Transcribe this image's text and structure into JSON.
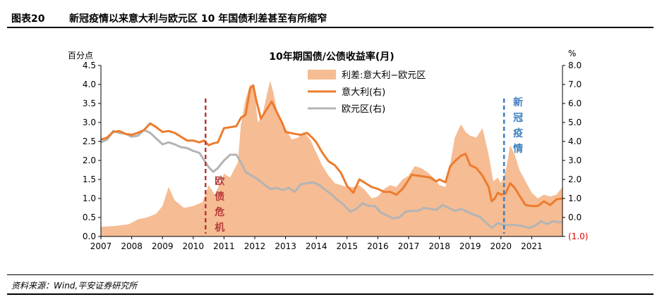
{
  "figure": {
    "number": "图表20",
    "title": "新冠疫情以来意大利与欧元区 10 年国债利差甚至有所缩窄"
  },
  "source": "资料来源：Wind,平安证券研究所",
  "colors": {
    "spread_fill": "#f6bc93",
    "italy_line": "#ec7c2e",
    "euro_line": "#b4b4b4",
    "crisis_marker": "#b53a3a",
    "covid_marker": "#3f7fbf",
    "negative_label": "#e00000"
  },
  "chart_data": {
    "type": "area+line",
    "title": "10年期国债/公债收益率(月)",
    "left_unit": "百分点",
    "right_unit": "%",
    "left_axis": {
      "min": 0,
      "max": 4.5,
      "step": 0.5,
      "tick_labels": [
        "0.0",
        "0.5",
        "1.0",
        "1.5",
        "2.0",
        "2.5",
        "3.0",
        "3.5",
        "4.0",
        "4.5"
      ]
    },
    "right_axis": {
      "min": -1,
      "max": 8,
      "step": 1,
      "tick_labels": [
        "(1.0)",
        "0.0",
        "1.0",
        "2.0",
        "3.0",
        "4.0",
        "5.0",
        "6.0",
        "7.0",
        "8.0"
      ]
    },
    "x_axis": {
      "min": 2007.0,
      "max": 2022.0,
      "tick_years": [
        2007,
        2008,
        2009,
        2010,
        2011,
        2012,
        2013,
        2014,
        2015,
        2016,
        2017,
        2018,
        2019,
        2020,
        2021
      ],
      "tick_labels": [
        "2007",
        "2008",
        "2009",
        "2010",
        "2011",
        "2012",
        "2013",
        "2014",
        "2015",
        "2016",
        "2017",
        "2018",
        "2019",
        "2020",
        "2021"
      ]
    },
    "legend": [
      "利差:意大利−欧元区",
      "意大利(右)",
      "欧元区(右)"
    ],
    "annotations": [
      {
        "label_chars": [
          "欧",
          "债",
          "危",
          "机"
        ],
        "x": 2010.4,
        "style": "dashed",
        "color_key": "crisis_marker"
      },
      {
        "label_chars": [
          "新",
          "冠",
          "疫",
          "情"
        ],
        "x": 2020.1,
        "style": "dashed",
        "color_key": "covid_marker"
      }
    ],
    "series": [
      {
        "name": "利差:意大利−欧元区",
        "axis": "left",
        "kind": "area",
        "points": [
          [
            2007.0,
            0.25
          ],
          [
            2007.5,
            0.28
          ],
          [
            2007.9,
            0.32
          ],
          [
            2008.2,
            0.45
          ],
          [
            2008.5,
            0.5
          ],
          [
            2008.8,
            0.6
          ],
          [
            2009.0,
            0.8
          ],
          [
            2009.2,
            1.3
          ],
          [
            2009.4,
            0.95
          ],
          [
            2009.7,
            0.75
          ],
          [
            2010.0,
            0.8
          ],
          [
            2010.3,
            0.9
          ],
          [
            2010.5,
            1.35
          ],
          [
            2010.7,
            1.1
          ],
          [
            2010.9,
            1.45
          ],
          [
            2011.0,
            1.65
          ],
          [
            2011.2,
            1.55
          ],
          [
            2011.45,
            1.95
          ],
          [
            2011.55,
            2.95
          ],
          [
            2011.7,
            3.6
          ],
          [
            2011.85,
            4.0
          ],
          [
            2011.95,
            3.9
          ],
          [
            2012.0,
            3.75
          ],
          [
            2012.1,
            3.0
          ],
          [
            2012.25,
            3.2
          ],
          [
            2012.4,
            3.75
          ],
          [
            2012.5,
            4.1
          ],
          [
            2012.6,
            3.8
          ],
          [
            2012.75,
            3.2
          ],
          [
            2012.9,
            2.95
          ],
          [
            2013.0,
            2.85
          ],
          [
            2013.2,
            2.55
          ],
          [
            2013.4,
            2.6
          ],
          [
            2013.6,
            2.75
          ],
          [
            2013.8,
            2.55
          ],
          [
            2014.0,
            2.2
          ],
          [
            2014.2,
            1.85
          ],
          [
            2014.4,
            1.6
          ],
          [
            2014.6,
            1.4
          ],
          [
            2014.8,
            1.35
          ],
          [
            2015.0,
            1.3
          ],
          [
            2015.2,
            1.3
          ],
          [
            2015.4,
            1.35
          ],
          [
            2015.6,
            1.2
          ],
          [
            2015.8,
            1.0
          ],
          [
            2016.0,
            1.05
          ],
          [
            2016.2,
            1.25
          ],
          [
            2016.4,
            1.35
          ],
          [
            2016.6,
            1.3
          ],
          [
            2016.8,
            1.5
          ],
          [
            2017.0,
            1.6
          ],
          [
            2017.2,
            1.85
          ],
          [
            2017.4,
            1.8
          ],
          [
            2017.6,
            1.7
          ],
          [
            2017.8,
            1.55
          ],
          [
            2018.0,
            1.35
          ],
          [
            2018.2,
            1.3
          ],
          [
            2018.35,
            1.9
          ],
          [
            2018.5,
            2.6
          ],
          [
            2018.7,
            2.95
          ],
          [
            2018.85,
            2.75
          ],
          [
            2019.0,
            2.65
          ],
          [
            2019.2,
            2.6
          ],
          [
            2019.4,
            2.85
          ],
          [
            2019.6,
            2.15
          ],
          [
            2019.75,
            1.45
          ],
          [
            2019.9,
            1.55
          ],
          [
            2020.0,
            1.4
          ],
          [
            2020.15,
            1.7
          ],
          [
            2020.3,
            2.4
          ],
          [
            2020.45,
            2.15
          ],
          [
            2020.6,
            1.75
          ],
          [
            2020.8,
            1.45
          ],
          [
            2021.0,
            1.15
          ],
          [
            2021.2,
            1.0
          ],
          [
            2021.4,
            1.1
          ],
          [
            2021.6,
            1.05
          ],
          [
            2021.8,
            1.1
          ],
          [
            2022.0,
            1.3
          ]
        ]
      },
      {
        "name": "意大利(右)",
        "axis": "right",
        "kind": "line",
        "points": [
          [
            2007.0,
            4.1
          ],
          [
            2007.2,
            4.2
          ],
          [
            2007.4,
            4.5
          ],
          [
            2007.6,
            4.55
          ],
          [
            2007.8,
            4.4
          ],
          [
            2008.0,
            4.35
          ],
          [
            2008.2,
            4.45
          ],
          [
            2008.4,
            4.6
          ],
          [
            2008.6,
            4.95
          ],
          [
            2008.8,
            4.75
          ],
          [
            2009.0,
            4.5
          ],
          [
            2009.2,
            4.55
          ],
          [
            2009.4,
            4.45
          ],
          [
            2009.6,
            4.25
          ],
          [
            2009.8,
            4.05
          ],
          [
            2010.0,
            4.05
          ],
          [
            2010.2,
            3.95
          ],
          [
            2010.35,
            4.05
          ],
          [
            2010.5,
            3.8
          ],
          [
            2010.65,
            3.9
          ],
          [
            2010.8,
            3.95
          ],
          [
            2011.0,
            4.7
          ],
          [
            2011.2,
            4.75
          ],
          [
            2011.4,
            4.8
          ],
          [
            2011.55,
            5.25
          ],
          [
            2011.7,
            5.4
          ],
          [
            2011.85,
            6.8
          ],
          [
            2011.95,
            6.95
          ],
          [
            2012.05,
            6.15
          ],
          [
            2012.2,
            5.2
          ],
          [
            2012.35,
            5.6
          ],
          [
            2012.55,
            6.1
          ],
          [
            2012.7,
            5.6
          ],
          [
            2012.9,
            4.95
          ],
          [
            2013.0,
            4.5
          ],
          [
            2013.3,
            4.4
          ],
          [
            2013.5,
            4.35
          ],
          [
            2013.7,
            4.45
          ],
          [
            2013.9,
            4.15
          ],
          [
            2014.0,
            3.95
          ],
          [
            2014.2,
            3.4
          ],
          [
            2014.4,
            2.95
          ],
          [
            2014.6,
            2.75
          ],
          [
            2014.8,
            2.35
          ],
          [
            2015.0,
            1.65
          ],
          [
            2015.2,
            1.3
          ],
          [
            2015.4,
            2.0
          ],
          [
            2015.6,
            1.8
          ],
          [
            2015.8,
            1.6
          ],
          [
            2016.0,
            1.5
          ],
          [
            2016.2,
            1.35
          ],
          [
            2016.4,
            1.35
          ],
          [
            2016.6,
            1.2
          ],
          [
            2016.8,
            1.5
          ],
          [
            2016.95,
            1.85
          ],
          [
            2017.1,
            2.25
          ],
          [
            2017.3,
            2.2
          ],
          [
            2017.5,
            2.15
          ],
          [
            2017.7,
            2.1
          ],
          [
            2017.9,
            1.9
          ],
          [
            2018.0,
            2.0
          ],
          [
            2018.2,
            1.85
          ],
          [
            2018.35,
            2.7
          ],
          [
            2018.5,
            2.95
          ],
          [
            2018.7,
            3.25
          ],
          [
            2018.85,
            3.35
          ],
          [
            2019.0,
            2.75
          ],
          [
            2019.2,
            2.6
          ],
          [
            2019.4,
            2.2
          ],
          [
            2019.6,
            1.6
          ],
          [
            2019.7,
            0.85
          ],
          [
            2019.8,
            1.0
          ],
          [
            2019.9,
            1.3
          ],
          [
            2020.0,
            1.2
          ],
          [
            2020.15,
            1.25
          ],
          [
            2020.3,
            1.8
          ],
          [
            2020.45,
            1.55
          ],
          [
            2020.6,
            1.15
          ],
          [
            2020.8,
            0.65
          ],
          [
            2021.0,
            0.6
          ],
          [
            2021.2,
            0.6
          ],
          [
            2021.4,
            0.85
          ],
          [
            2021.6,
            0.65
          ],
          [
            2021.8,
            0.95
          ],
          [
            2022.0,
            1.0
          ]
        ]
      },
      {
        "name": "欧元区(右)",
        "axis": "right",
        "kind": "line",
        "points": [
          [
            2007.0,
            3.95
          ],
          [
            2007.2,
            4.1
          ],
          [
            2007.4,
            4.55
          ],
          [
            2007.6,
            4.45
          ],
          [
            2007.8,
            4.4
          ],
          [
            2008.0,
            4.25
          ],
          [
            2008.2,
            4.3
          ],
          [
            2008.4,
            4.6
          ],
          [
            2008.6,
            4.45
          ],
          [
            2008.8,
            4.15
          ],
          [
            2009.0,
            3.85
          ],
          [
            2009.2,
            3.95
          ],
          [
            2009.4,
            3.85
          ],
          [
            2009.6,
            3.7
          ],
          [
            2009.8,
            3.65
          ],
          [
            2010.0,
            3.5
          ],
          [
            2010.2,
            3.4
          ],
          [
            2010.5,
            2.65
          ],
          [
            2010.65,
            2.4
          ],
          [
            2010.8,
            2.6
          ],
          [
            2011.0,
            3.0
          ],
          [
            2011.2,
            3.3
          ],
          [
            2011.4,
            3.3
          ],
          [
            2011.55,
            2.9
          ],
          [
            2011.7,
            2.4
          ],
          [
            2011.9,
            2.2
          ],
          [
            2012.1,
            2.0
          ],
          [
            2012.3,
            1.75
          ],
          [
            2012.5,
            1.5
          ],
          [
            2012.7,
            1.55
          ],
          [
            2012.9,
            1.45
          ],
          [
            2013.1,
            1.55
          ],
          [
            2013.3,
            1.35
          ],
          [
            2013.5,
            1.75
          ],
          [
            2013.7,
            1.8
          ],
          [
            2013.9,
            1.85
          ],
          [
            2014.1,
            1.7
          ],
          [
            2014.3,
            1.45
          ],
          [
            2014.5,
            1.2
          ],
          [
            2014.7,
            0.9
          ],
          [
            2014.9,
            0.65
          ],
          [
            2015.1,
            0.3
          ],
          [
            2015.3,
            0.45
          ],
          [
            2015.5,
            0.75
          ],
          [
            2015.7,
            0.6
          ],
          [
            2015.9,
            0.6
          ],
          [
            2016.1,
            0.25
          ],
          [
            2016.3,
            0.1
          ],
          [
            2016.5,
            -0.05
          ],
          [
            2016.7,
            0.0
          ],
          [
            2016.9,
            0.3
          ],
          [
            2017.1,
            0.35
          ],
          [
            2017.3,
            0.35
          ],
          [
            2017.5,
            0.5
          ],
          [
            2017.7,
            0.45
          ],
          [
            2017.9,
            0.4
          ],
          [
            2018.1,
            0.65
          ],
          [
            2018.3,
            0.5
          ],
          [
            2018.5,
            0.35
          ],
          [
            2018.7,
            0.45
          ],
          [
            2018.9,
            0.3
          ],
          [
            2019.1,
            0.15
          ],
          [
            2019.3,
            0.05
          ],
          [
            2019.5,
            -0.25
          ],
          [
            2019.7,
            -0.55
          ],
          [
            2019.9,
            -0.3
          ],
          [
            2020.1,
            -0.4
          ],
          [
            2020.3,
            -0.4
          ],
          [
            2020.5,
            -0.4
          ],
          [
            2020.7,
            -0.45
          ],
          [
            2020.9,
            -0.55
          ],
          [
            2021.1,
            -0.45
          ],
          [
            2021.3,
            -0.2
          ],
          [
            2021.5,
            -0.35
          ],
          [
            2021.7,
            -0.2
          ],
          [
            2021.9,
            -0.25
          ],
          [
            2022.0,
            -0.25
          ]
        ]
      }
    ]
  }
}
